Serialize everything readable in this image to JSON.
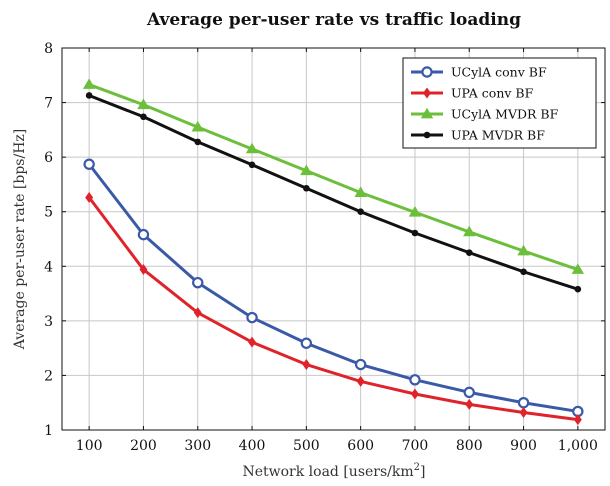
{
  "chart_data": {
    "type": "line",
    "title": "Average per-user rate vs traffic loading",
    "xlabel": "Network load [users/km",
    "xlabel_sup": "2",
    "xlabel_suffix": "]",
    "ylabel": "Average per-user rate [bps/Hz]",
    "x": [
      100,
      200,
      300,
      400,
      500,
      600,
      700,
      800,
      900,
      1000
    ],
    "x_tick_labels": [
      "100",
      "200",
      "300",
      "400",
      "500",
      "600",
      "700",
      "800",
      "900",
      "1,000"
    ],
    "ylim": [
      1,
      8
    ],
    "y_ticks": [
      1,
      2,
      3,
      4,
      5,
      6,
      7,
      8
    ],
    "grid": true,
    "legend_position": "top-right",
    "series": [
      {
        "name": "UCylA conv BF",
        "color": "#3a5aa8",
        "marker": "circle",
        "values": [
          5.87,
          4.58,
          3.7,
          3.06,
          2.59,
          2.2,
          1.92,
          1.69,
          1.5,
          1.34
        ]
      },
      {
        "name": "UPA conv BF",
        "color": "#e0232a",
        "marker": "diamond",
        "values": [
          5.26,
          3.94,
          3.15,
          2.61,
          2.2,
          1.89,
          1.66,
          1.47,
          1.32,
          1.19
        ]
      },
      {
        "name": "UCylA MVDR BF",
        "color": "#6cbf3a",
        "marker": "triangle",
        "values": [
          7.33,
          6.96,
          6.55,
          6.15,
          5.75,
          5.35,
          4.99,
          4.63,
          4.28,
          3.94
        ]
      },
      {
        "name": "UPA MVDR BF",
        "color": "#111111",
        "marker": "dot",
        "values": [
          7.13,
          6.74,
          6.28,
          5.86,
          5.43,
          5.0,
          4.61,
          4.25,
          3.9,
          3.58
        ]
      }
    ]
  }
}
